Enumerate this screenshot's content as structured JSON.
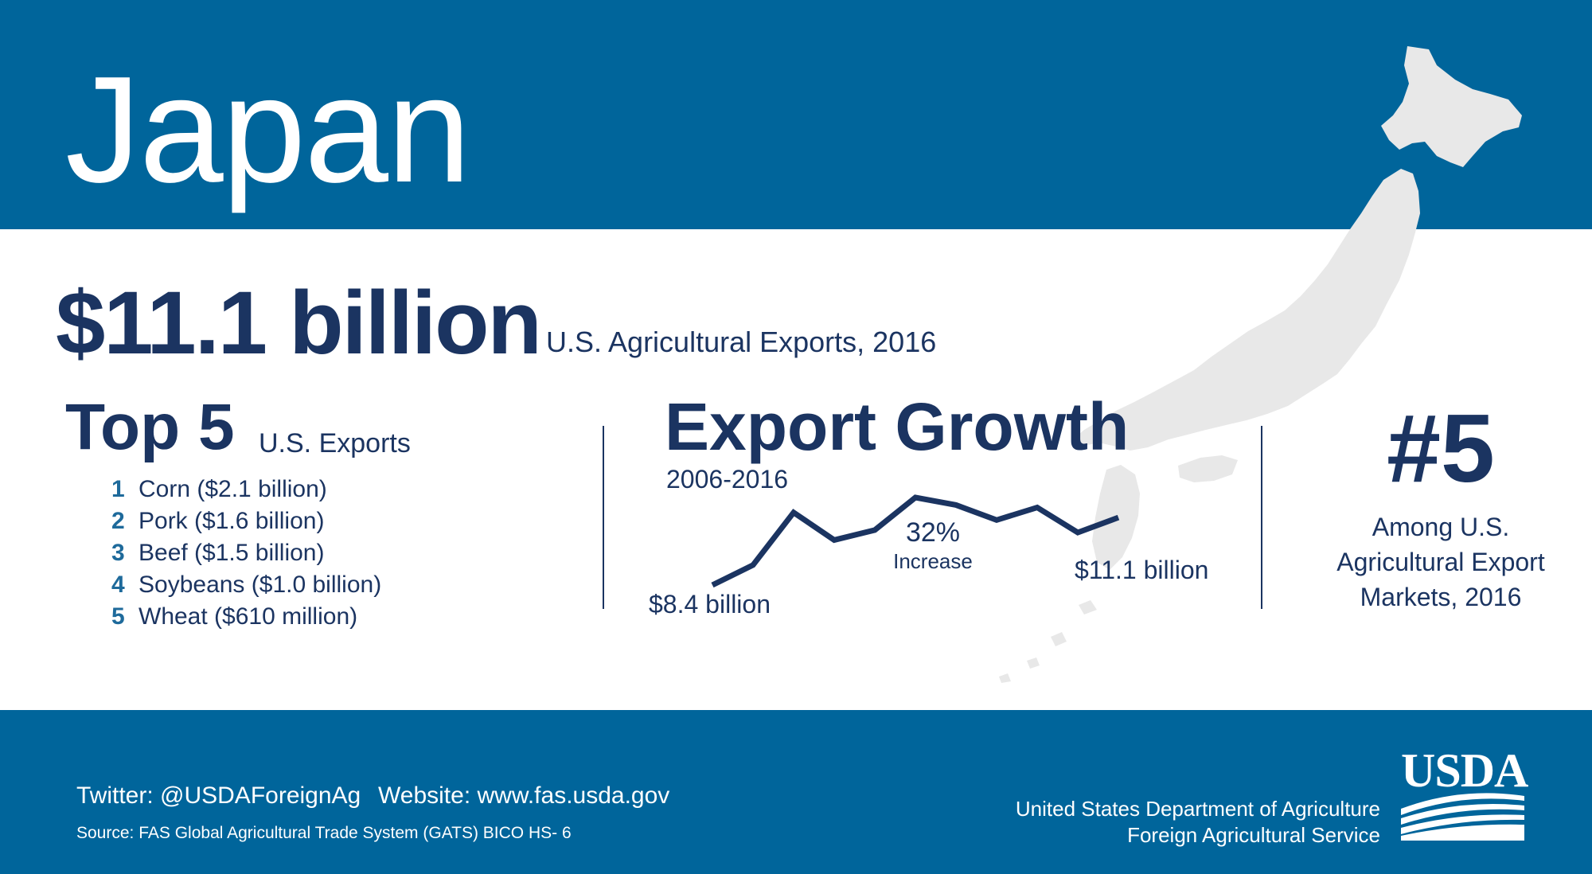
{
  "title": "Japan",
  "headline": {
    "value": "$11.1 billion",
    "caption": "U.S. Agricultural Exports, 2016"
  },
  "top5": {
    "heading": "Top 5",
    "subheading": "U.S. Exports",
    "items": [
      {
        "rank": "1",
        "label": "Corn ($2.1 billion)"
      },
      {
        "rank": "2",
        "label": "Pork ($1.6 billion)"
      },
      {
        "rank": "3",
        "label": "Beef ($1.5 billion)"
      },
      {
        "rank": "4",
        "label": "Soybeans ($1.0 billion)"
      },
      {
        "rank": "5",
        "label": "Wheat ($610 million)"
      }
    ]
  },
  "growth": {
    "heading": "Export Growth",
    "years": "2006-2016",
    "change_value": "32%",
    "change_label": "Increase",
    "start_label": "$8.4 billion",
    "end_label": "$11.1 billion"
  },
  "chart_data": {
    "type": "line",
    "x": [
      2006,
      2007,
      2008,
      2009,
      2010,
      2011,
      2012,
      2013,
      2014,
      2015,
      2016
    ],
    "values": [
      8.4,
      9.2,
      11.3,
      10.2,
      10.6,
      11.9,
      11.6,
      11.0,
      11.5,
      10.5,
      11.1
    ],
    "color": "#1b3461"
  },
  "rank": {
    "value": "#5",
    "caption_lines": [
      "Among U.S.",
      "Agricultural Export",
      "Markets, 2016"
    ]
  },
  "footer": {
    "twitter": "Twitter: @USDAForeignAg",
    "website": "Website: www.fas.usda.gov",
    "source": "Source: FAS Global Agricultural Trade System (GATS) BICO HS- 6",
    "agency_line1": "United States Department of Agriculture",
    "agency_line2": "Foreign Agricultural Service",
    "logo_text": "USDA"
  },
  "colors": {
    "band": "#00659b",
    "navy": "#1b3461",
    "list_number": "#1e6a9b",
    "map": "#e8e8e8"
  }
}
